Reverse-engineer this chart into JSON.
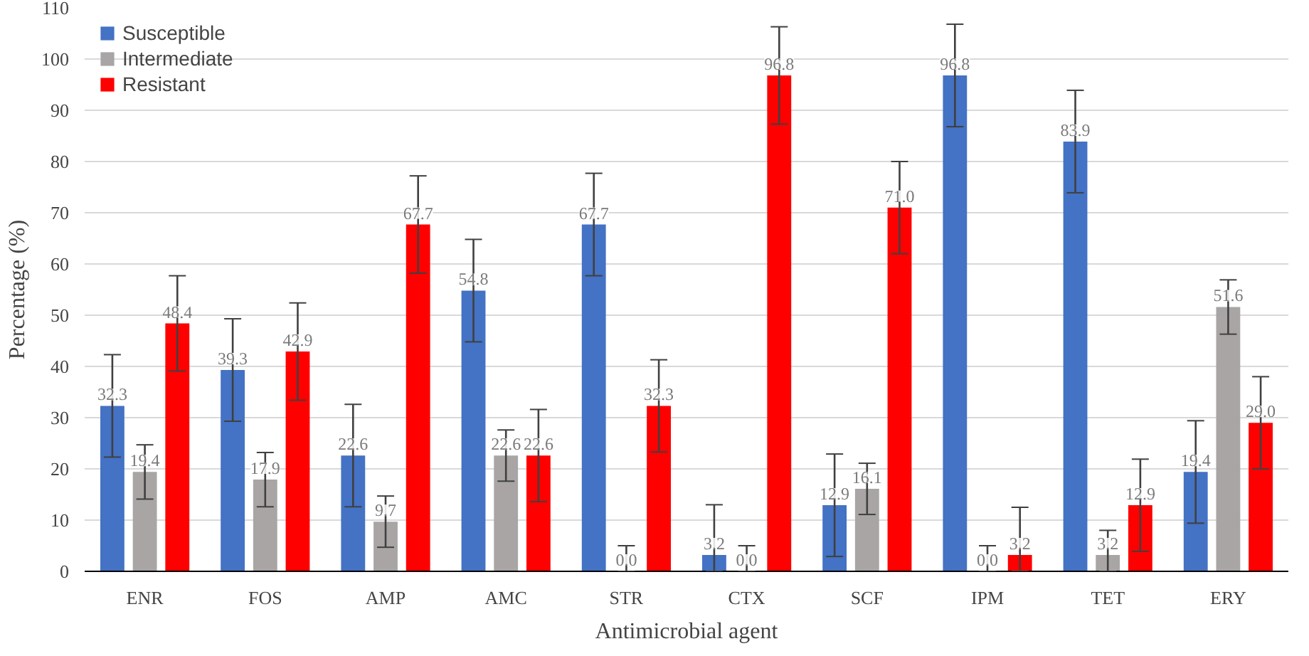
{
  "chart_data": {
    "type": "bar",
    "xlabel": "Antimicrobial agent",
    "ylabel": "Percentage (%)",
    "categories": [
      "ENR",
      "FOS",
      "AMP",
      "AMC",
      "STR",
      "CTX",
      "SCF",
      "IPM",
      "TET",
      "ERY"
    ],
    "series": [
      {
        "name": "Susceptible",
        "color": "#4472c4",
        "values": [
          32.3,
          39.3,
          22.6,
          54.8,
          67.7,
          3.2,
          12.9,
          96.8,
          83.9,
          19.4
        ],
        "value_labels": [
          "32.3",
          "39.3",
          "22.6",
          "54.8",
          "67.7",
          "3.2",
          "12.9",
          "96.8",
          "83.9",
          "19.4"
        ],
        "errors": [
          [
            22.3,
            42.3
          ],
          [
            29.3,
            49.3
          ],
          [
            12.6,
            32.6
          ],
          [
            44.8,
            64.8
          ],
          [
            57.7,
            77.7
          ],
          [
            0,
            13
          ],
          [
            2.9,
            22.9
          ],
          [
            86.8,
            106.8
          ],
          [
            73.9,
            93.9
          ],
          [
            9.4,
            29.4
          ]
        ]
      },
      {
        "name": "Intermediate",
        "color": "#a9a5a5",
        "values": [
          19.4,
          17.9,
          9.7,
          22.6,
          0.0,
          0.0,
          16.1,
          0.0,
          3.2,
          51.6
        ],
        "value_labels": [
          "19.4",
          "17.9",
          "9.7",
          "22.6",
          "0.0",
          "0.0",
          "16.1",
          "0.0",
          "3.2",
          "51.6"
        ],
        "errors": [
          [
            14.1,
            24.7
          ],
          [
            12.6,
            23.2
          ],
          [
            4.7,
            14.7
          ],
          [
            17.6,
            27.6
          ],
          [
            0,
            5
          ],
          [
            0,
            5
          ],
          [
            11.1,
            21.1
          ],
          [
            0,
            5
          ],
          [
            0,
            8
          ],
          [
            46.3,
            56.9
          ]
        ]
      },
      {
        "name": "Resistant",
        "color": "#ff0000",
        "values": [
          48.4,
          42.9,
          67.7,
          22.6,
          32.3,
          96.8,
          71.0,
          3.2,
          12.9,
          29.0
        ],
        "value_labels": [
          "48.4",
          "42.9",
          "67.7",
          "22.6",
          "32.3",
          "96.8",
          "71.0",
          "3.2",
          "12.9",
          "29.0"
        ],
        "errors": [
          [
            39.1,
            57.7
          ],
          [
            33.4,
            52.4
          ],
          [
            58.2,
            77.2
          ],
          [
            13.6,
            31.6
          ],
          [
            23.3,
            41.3
          ],
          [
            87.3,
            106.3
          ],
          [
            62,
            80
          ],
          [
            0,
            12.5
          ],
          [
            3.9,
            21.9
          ],
          [
            20,
            38
          ]
        ]
      }
    ],
    "ylim": [
      0,
      110
    ],
    "yticks": [
      0,
      10,
      20,
      30,
      40,
      50,
      60,
      70,
      80,
      90,
      100,
      110
    ],
    "grid": "y",
    "legend": "top left"
  }
}
